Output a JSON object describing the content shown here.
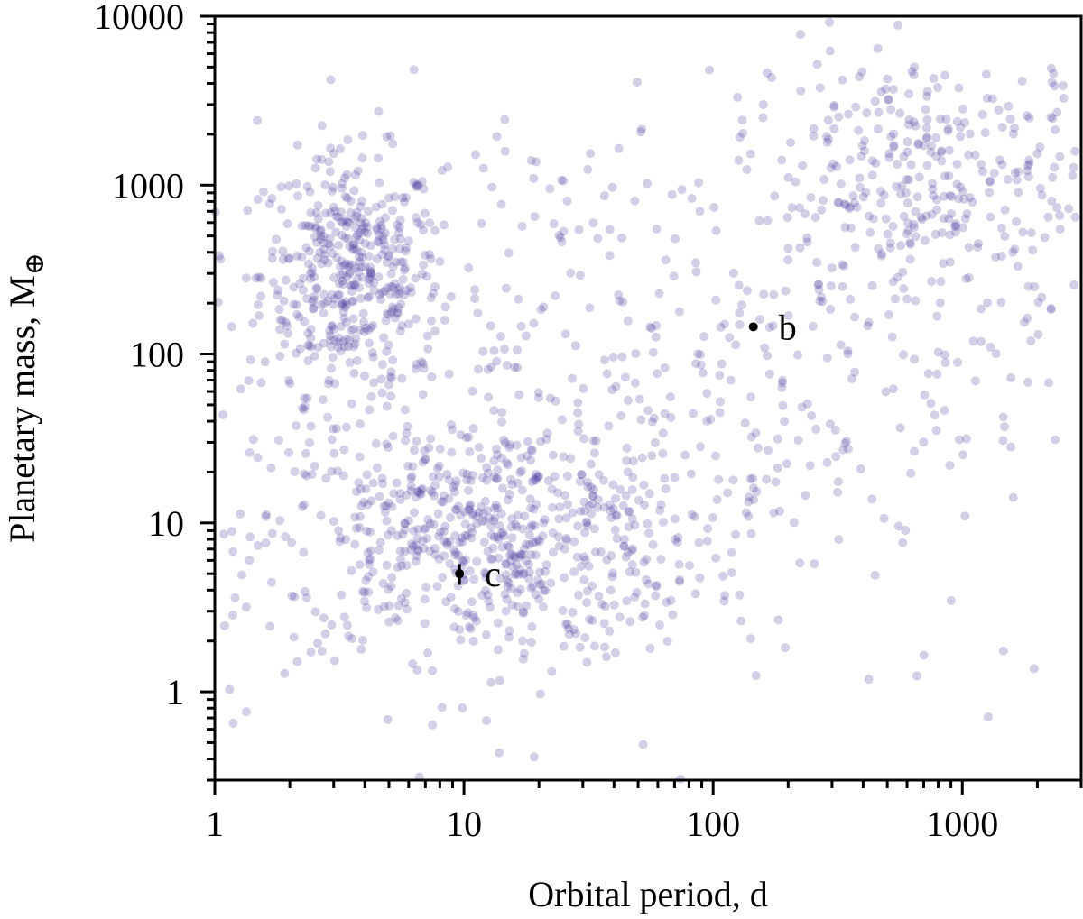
{
  "chart_data": {
    "type": "scatter",
    "title": "",
    "xlabel": "Orbital period, d",
    "ylabel": "Planetary mass, M⊕",
    "xscale": "log",
    "yscale": "log",
    "xlim": [
      1,
      3000
    ],
    "ylim": [
      0.3,
      10000
    ],
    "x_ticks": [
      1,
      10,
      100,
      1000
    ],
    "x_tick_labels": [
      "1",
      "10",
      "100",
      "1000"
    ],
    "y_ticks": [
      1,
      10,
      100,
      1000,
      10000
    ],
    "y_tick_labels": [
      "1",
      "10",
      "100",
      "1000",
      "10000"
    ],
    "grid": false,
    "legend": null,
    "point_color": "#4b3f9e",
    "point_alpha": 0.25,
    "background_population": {
      "description": "Known exoplanet population (semi-transparent purple points), approx. 2000 points",
      "clusters": [
        {
          "name": "hot-jupiters",
          "center_period": 3.5,
          "center_mass": 300,
          "spread_logP": 0.18,
          "spread_logM": 0.35,
          "count": 420
        },
        {
          "name": "super-earths-neptunes",
          "center_period": 12,
          "center_mass": 8,
          "spread_logP": 0.45,
          "spread_logM": 0.35,
          "count": 600
        },
        {
          "name": "warm-cold-giants",
          "center_period": 800,
          "center_mass": 900,
          "spread_logP": 0.4,
          "spread_logM": 0.45,
          "count": 380
        },
        {
          "name": "diffuse",
          "center_period": 40,
          "center_mass": 60,
          "spread_logP": 0.9,
          "spread_logM": 0.9,
          "count": 500
        }
      ]
    },
    "highlighted_planets": [
      {
        "label": "b",
        "period": 145,
        "mass": 145,
        "mass_err": [
          0,
          0
        ]
      },
      {
        "label": "c",
        "period": 9.6,
        "mass": 5.0,
        "mass_err": [
          0.7,
          0.7
        ]
      }
    ]
  },
  "annotations": {
    "b": "b",
    "c": "c"
  },
  "axes": {
    "xlabel": "Orbital period, d",
    "ylabel_main": "Planetary mass, M",
    "ylabel_sub": "⊕"
  }
}
